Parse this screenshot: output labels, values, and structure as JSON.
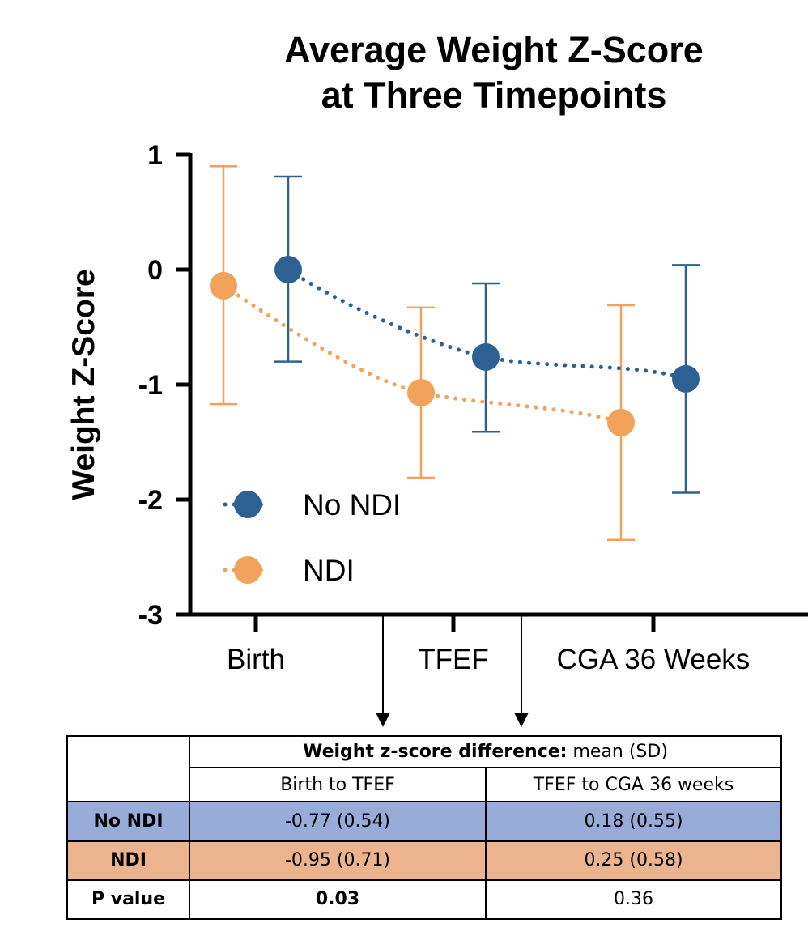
{
  "chart_data": {
    "type": "line",
    "title": [
      "Average Weight Z-Score",
      "at Three Timepoints"
    ],
    "ylabel": "Weight Z-Score",
    "xlabel": "",
    "categories": [
      "Birth",
      "TFEF",
      "CGA 36 Weeks"
    ],
    "ylim": [
      -3,
      1
    ],
    "yticks": [
      "1",
      "0",
      "-1",
      "-2",
      "-3"
    ],
    "legend_position": "lower-left",
    "series": [
      {
        "name": "No NDI",
        "color": "#2E6193",
        "values": [
          0.0,
          -0.76,
          -0.95
        ],
        "err_low": [
          -0.8,
          -1.41,
          -1.94
        ],
        "err_high": [
          0.81,
          -0.12,
          0.04
        ]
      },
      {
        "name": "NDI",
        "color": "#F2A25A",
        "values": [
          -0.14,
          -1.07,
          -1.33
        ],
        "err_low": [
          -1.17,
          -1.81,
          -2.35
        ],
        "err_high": [
          0.9,
          -0.33,
          -0.31
        ]
      }
    ]
  },
  "table": {
    "header_bold": "Weight z-score difference:",
    "header_rest": " mean (SD)",
    "columns": [
      "Birth to TFEF",
      "TFEF to CGA 36 weeks"
    ],
    "rows": [
      {
        "label": "No NDI",
        "values": [
          "-0.77 (0.54)",
          "0.18 (0.55)"
        ],
        "color": "#97ACD8"
      },
      {
        "label": "NDI",
        "values": [
          "-0.95 (0.71)",
          "0.25 (0.58)"
        ],
        "color": "#EBB38E"
      },
      {
        "label": "P value",
        "values": [
          "0.03",
          "0.36"
        ],
        "color": "#FFFFFF"
      }
    ]
  }
}
